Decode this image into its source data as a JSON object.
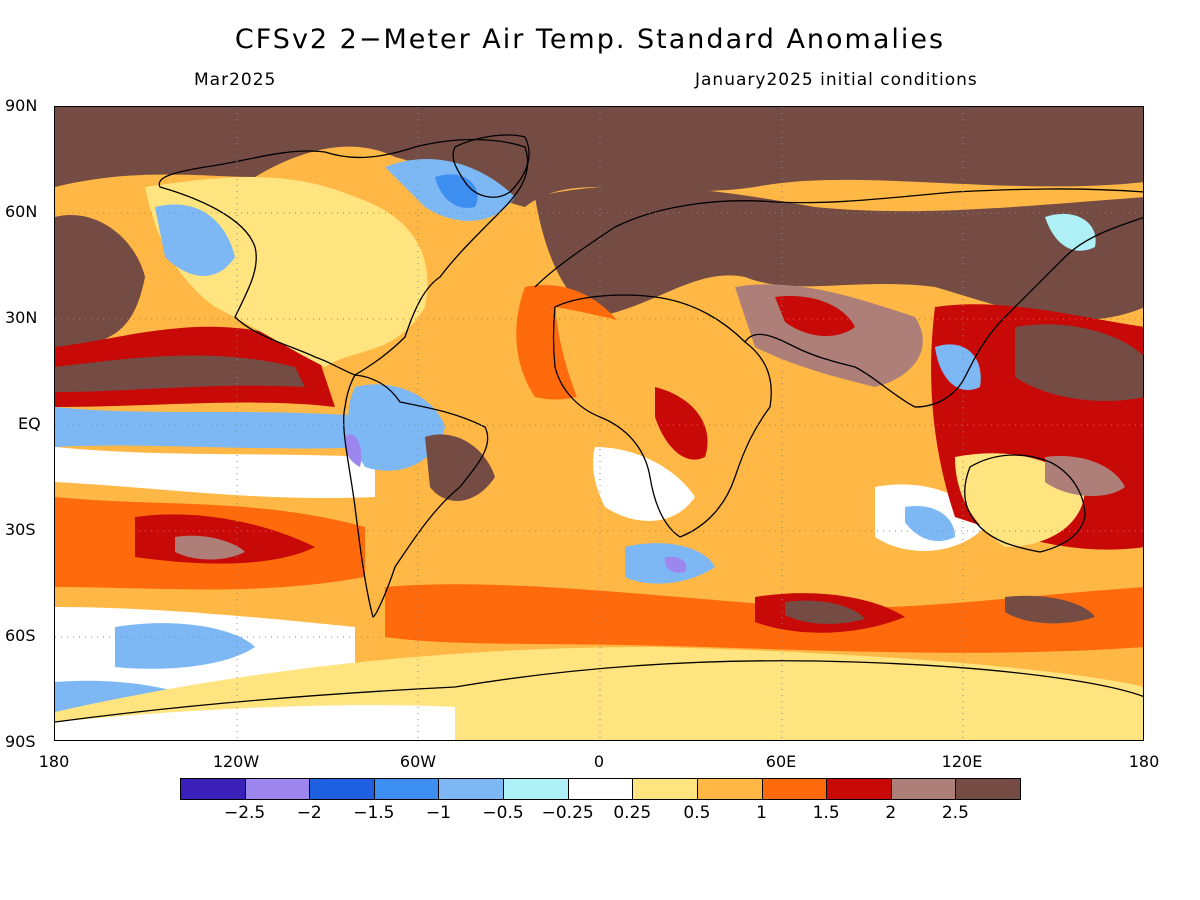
{
  "header": {
    "title": "CFSv2 2−Meter Air Temp. Standard Anomalies",
    "left_subtitle": "Mar2025",
    "right_subtitle": "January2025 initial conditions"
  },
  "map": {
    "lat_labels": [
      "90N",
      "60N",
      "30N",
      "EQ",
      "30S",
      "60S",
      "90S"
    ],
    "lon_labels": [
      "180",
      "120W",
      "60W",
      "0",
      "60E",
      "120E",
      "180"
    ],
    "lat_range": [
      -90,
      90
    ],
    "lon_range": [
      -180,
      180
    ],
    "grid": true
  },
  "colorbar": {
    "colors": [
      "#3a1fb8",
      "#9d87ef",
      "#1f60e0",
      "#3c8ef0",
      "#7db8f5",
      "#aef0f6",
      "#ffffff",
      "#ffe47f",
      "#ffb845",
      "#ff6a0c",
      "#c70a08",
      "#ad7f78",
      "#744c44"
    ],
    "labels": [
      "−2.5",
      "−2",
      "−1.5",
      "−1",
      "−0.5",
      "−0.25",
      "0.25",
      "0.5",
      "1",
      "1.5",
      "2",
      "2.5"
    ]
  }
}
